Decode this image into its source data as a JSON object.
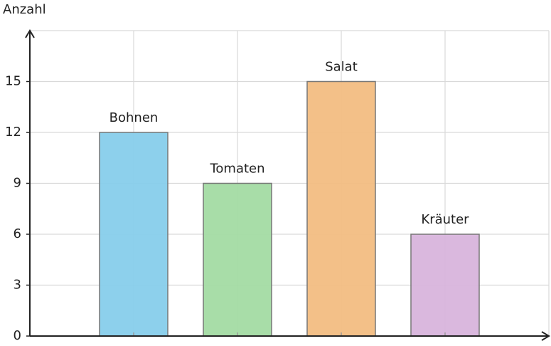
{
  "chart_data": {
    "type": "bar",
    "y_label": "Anzahl",
    "categories": [
      "Bohnen",
      "Tomaten",
      "Salat",
      "Kräuter"
    ],
    "values": [
      12,
      9,
      15,
      6
    ],
    "colors": [
      "#87ceeb",
      "#a3dba3",
      "#f2bd82",
      "#d8b4dc"
    ],
    "ylim": [
      0,
      18
    ],
    "yticks": [
      0,
      3,
      6,
      9,
      12,
      15
    ],
    "grid": true
  }
}
